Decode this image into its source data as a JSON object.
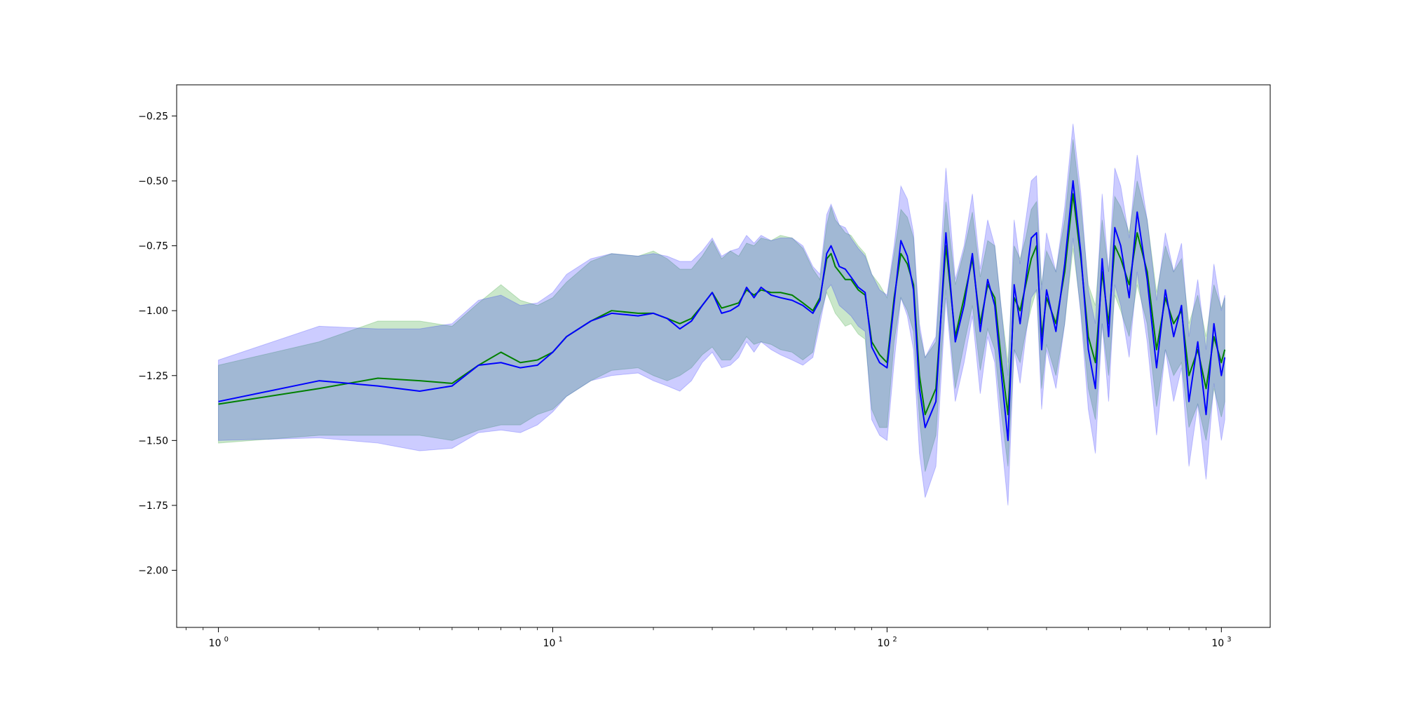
{
  "chart_data": {
    "type": "line",
    "title": "",
    "xlabel": "",
    "ylabel": "",
    "x_scale": "log",
    "xlim": [
      0.75,
      1400
    ],
    "ylim": [
      -2.22,
      -0.13
    ],
    "grid": false,
    "legend": "none",
    "x_ticks": [
      {
        "value": 1,
        "base": "10",
        "exp": "0"
      },
      {
        "value": 10,
        "base": "10",
        "exp": "1"
      },
      {
        "value": 100,
        "base": "10",
        "exp": "2"
      },
      {
        "value": 1000,
        "base": "10",
        "exp": "3"
      }
    ],
    "y_ticks": [
      {
        "value": -0.25,
        "label": "−0.25"
      },
      {
        "value": -0.5,
        "label": "−0.50"
      },
      {
        "value": -0.75,
        "label": "−0.75"
      },
      {
        "value": -1.0,
        "label": "−1.00"
      },
      {
        "value": -1.25,
        "label": "−1.25"
      },
      {
        "value": -1.5,
        "label": "−1.50"
      },
      {
        "value": -1.75,
        "label": "−1.75"
      },
      {
        "value": -2.0,
        "label": "−2.00"
      }
    ],
    "series": [
      {
        "color": "#008000",
        "band_color": "#2ca02c",
        "band_opacity": 0.25,
        "x": [
          1,
          2,
          3,
          4,
          5,
          6,
          7,
          8,
          9,
          10,
          11,
          13,
          15,
          18,
          20,
          22,
          24,
          26,
          28,
          30,
          32,
          34,
          36,
          38,
          40,
          42,
          45,
          48,
          52,
          56,
          60,
          63,
          66,
          68,
          70,
          72,
          75,
          78,
          82,
          86,
          90,
          95,
          100,
          105,
          110,
          115,
          120,
          125,
          130,
          140,
          150,
          160,
          170,
          180,
          190,
          200,
          210,
          220,
          230,
          240,
          250,
          260,
          270,
          280,
          290,
          300,
          320,
          340,
          360,
          380,
          400,
          420,
          440,
          460,
          480,
          500,
          530,
          560,
          600,
          640,
          680,
          720,
          760,
          800,
          850,
          900,
          950,
          1000,
          1024
        ],
        "y": [
          -1.36,
          -1.3,
          -1.26,
          -1.27,
          -1.28,
          -1.21,
          -1.16,
          -1.2,
          -1.19,
          -1.16,
          -1.1,
          -1.04,
          -1.0,
          -1.01,
          -1.01,
          -1.03,
          -1.05,
          -1.03,
          -0.98,
          -0.93,
          -0.99,
          -0.98,
          -0.97,
          -0.92,
          -0.94,
          -0.92,
          -0.93,
          -0.93,
          -0.94,
          -0.97,
          -1.0,
          -0.95,
          -0.8,
          -0.78,
          -0.83,
          -0.85,
          -0.88,
          -0.88,
          -0.92,
          -0.94,
          -1.12,
          -1.17,
          -1.2,
          -0.95,
          -0.78,
          -0.82,
          -0.9,
          -1.25,
          -1.4,
          -1.3,
          -0.75,
          -1.1,
          -0.95,
          -0.8,
          -1.05,
          -0.9,
          -0.95,
          -1.2,
          -1.4,
          -0.95,
          -1.0,
          -0.9,
          -0.8,
          -0.75,
          -1.1,
          -0.95,
          -1.05,
          -0.85,
          -0.55,
          -0.8,
          -1.1,
          -1.2,
          -0.85,
          -1.05,
          -0.75,
          -0.8,
          -0.9,
          -0.7,
          -0.85,
          -1.15,
          -0.95,
          -1.05,
          -1.0,
          -1.25,
          -1.15,
          -1.3,
          -1.1,
          -1.2,
          -1.15
        ],
        "lower": [
          -1.51,
          -1.48,
          -1.48,
          -1.48,
          -1.5,
          -1.46,
          -1.44,
          -1.44,
          -1.4,
          -1.38,
          -1.33,
          -1.27,
          -1.23,
          -1.22,
          -1.25,
          -1.27,
          -1.25,
          -1.22,
          -1.17,
          -1.14,
          -1.19,
          -1.19,
          -1.15,
          -1.1,
          -1.13,
          -1.12,
          -1.13,
          -1.15,
          -1.16,
          -1.19,
          -1.16,
          -1.02,
          -0.93,
          -0.97,
          -1.01,
          -1.03,
          -1.06,
          -1.05,
          -1.09,
          -1.11,
          -1.38,
          -1.45,
          -1.45,
          -1.12,
          -0.95,
          -1.0,
          -1.08,
          -1.42,
          -1.62,
          -1.48,
          -0.92,
          -1.3,
          -1.13,
          -0.98,
          -1.23,
          -1.07,
          -1.15,
          -1.4,
          -1.6,
          -1.15,
          -1.2,
          -1.08,
          -0.99,
          -0.92,
          -1.3,
          -1.13,
          -1.25,
          -1.05,
          -0.76,
          -1.0,
          -1.3,
          -1.42,
          -1.05,
          -1.25,
          -0.94,
          -1.0,
          -1.1,
          -0.9,
          -1.05,
          -1.37,
          -1.15,
          -1.25,
          -1.2,
          -1.45,
          -1.36,
          -1.5,
          -1.3,
          -1.41,
          -1.35
        ],
        "upper": [
          -1.21,
          -1.12,
          -1.04,
          -1.04,
          -1.06,
          -0.97,
          -0.9,
          -0.96,
          -0.98,
          -0.95,
          -0.89,
          -0.81,
          -0.78,
          -0.79,
          -0.77,
          -0.8,
          -0.84,
          -0.84,
          -0.79,
          -0.73,
          -0.8,
          -0.77,
          -0.79,
          -0.74,
          -0.75,
          -0.72,
          -0.73,
          -0.71,
          -0.72,
          -0.76,
          -0.84,
          -0.88,
          -0.67,
          -0.6,
          -0.65,
          -0.67,
          -0.7,
          -0.71,
          -0.75,
          -0.78,
          -0.86,
          -0.9,
          -0.95,
          -0.78,
          -0.61,
          -0.64,
          -0.72,
          -1.08,
          -1.18,
          -1.12,
          -0.58,
          -0.9,
          -0.77,
          -0.62,
          -0.87,
          -0.73,
          -0.75,
          -1.0,
          -1.2,
          -0.75,
          -0.8,
          -0.72,
          -0.61,
          -0.58,
          -0.9,
          -0.77,
          -0.85,
          -0.65,
          -0.34,
          -0.6,
          -0.9,
          -0.98,
          -0.65,
          -0.85,
          -0.56,
          -0.6,
          -0.7,
          -0.5,
          -0.65,
          -0.93,
          -0.75,
          -0.85,
          -0.8,
          -1.05,
          -0.94,
          -1.1,
          -0.9,
          -0.99,
          -0.95
        ]
      },
      {
        "color": "#0000ff",
        "band_color": "#0000ff",
        "band_opacity": 0.2,
        "x": [
          1,
          2,
          3,
          4,
          5,
          6,
          7,
          8,
          9,
          10,
          11,
          13,
          15,
          18,
          20,
          22,
          24,
          26,
          28,
          30,
          32,
          34,
          36,
          38,
          40,
          42,
          45,
          48,
          52,
          56,
          60,
          63,
          66,
          68,
          70,
          72,
          75,
          78,
          82,
          86,
          90,
          95,
          100,
          105,
          110,
          115,
          120,
          125,
          130,
          140,
          150,
          160,
          170,
          180,
          190,
          200,
          210,
          220,
          230,
          240,
          250,
          260,
          270,
          280,
          290,
          300,
          320,
          340,
          360,
          380,
          400,
          420,
          440,
          460,
          480,
          500,
          530,
          560,
          600,
          640,
          680,
          720,
          760,
          800,
          850,
          900,
          950,
          1000,
          1024
        ],
        "y": [
          -1.35,
          -1.27,
          -1.29,
          -1.31,
          -1.29,
          -1.21,
          -1.2,
          -1.22,
          -1.21,
          -1.16,
          -1.1,
          -1.04,
          -1.01,
          -1.02,
          -1.01,
          -1.03,
          -1.07,
          -1.04,
          -0.98,
          -0.93,
          -1.01,
          -1.0,
          -0.98,
          -0.91,
          -0.95,
          -0.91,
          -0.94,
          -0.95,
          -0.96,
          -0.98,
          -1.01,
          -0.96,
          -0.78,
          -0.75,
          -0.79,
          -0.83,
          -0.84,
          -0.87,
          -0.91,
          -0.93,
          -1.14,
          -1.2,
          -1.22,
          -0.97,
          -0.73,
          -0.79,
          -0.92,
          -1.3,
          -1.45,
          -1.35,
          -0.7,
          -1.12,
          -0.98,
          -0.78,
          -1.08,
          -0.88,
          -0.98,
          -1.25,
          -1.5,
          -0.9,
          -1.05,
          -0.88,
          -0.72,
          -0.7,
          -1.15,
          -0.92,
          -1.08,
          -0.82,
          -0.5,
          -0.78,
          -1.15,
          -1.3,
          -0.8,
          -1.1,
          -0.68,
          -0.75,
          -0.95,
          -0.62,
          -0.88,
          -1.22,
          -0.92,
          -1.1,
          -0.98,
          -1.35,
          -1.12,
          -1.4,
          -1.05,
          -1.25,
          -1.18
        ],
        "lower": [
          -1.5,
          -1.49,
          -1.51,
          -1.54,
          -1.53,
          -1.47,
          -1.46,
          -1.47,
          -1.44,
          -1.39,
          -1.33,
          -1.27,
          -1.25,
          -1.24,
          -1.27,
          -1.29,
          -1.31,
          -1.27,
          -1.2,
          -1.16,
          -1.22,
          -1.21,
          -1.18,
          -1.12,
          -1.16,
          -1.12,
          -1.15,
          -1.17,
          -1.19,
          -1.21,
          -1.18,
          -1.05,
          -0.92,
          -0.9,
          -0.94,
          -0.98,
          -1.0,
          -1.02,
          -1.06,
          -1.08,
          -1.42,
          -1.48,
          -1.5,
          -1.2,
          -0.95,
          -1.02,
          -1.15,
          -1.55,
          -1.72,
          -1.6,
          -0.95,
          -1.35,
          -1.2,
          -1.02,
          -1.32,
          -1.1,
          -1.2,
          -1.5,
          -1.75,
          -1.15,
          -1.28,
          -1.1,
          -0.95,
          -0.92,
          -1.38,
          -1.15,
          -1.3,
          -1.05,
          -0.72,
          -1.02,
          -1.38,
          -1.55,
          -1.05,
          -1.35,
          -0.9,
          -0.98,
          -1.18,
          -0.85,
          -1.12,
          -1.48,
          -1.15,
          -1.35,
          -1.22,
          -1.6,
          -1.36,
          -1.65,
          -1.28,
          -1.5,
          -1.42
        ],
        "upper": [
          -1.19,
          -1.06,
          -1.07,
          -1.07,
          -1.05,
          -0.96,
          -0.94,
          -0.98,
          -0.97,
          -0.93,
          -0.86,
          -0.8,
          -0.78,
          -0.79,
          -0.78,
          -0.79,
          -0.81,
          -0.81,
          -0.77,
          -0.72,
          -0.79,
          -0.77,
          -0.76,
          -0.71,
          -0.74,
          -0.71,
          -0.73,
          -0.72,
          -0.72,
          -0.75,
          -0.83,
          -0.86,
          -0.63,
          -0.59,
          -0.63,
          -0.67,
          -0.68,
          -0.72,
          -0.76,
          -0.79,
          -0.86,
          -0.92,
          -0.94,
          -0.75,
          -0.52,
          -0.57,
          -0.7,
          -1.05,
          -1.18,
          -1.1,
          -0.45,
          -0.88,
          -0.75,
          -0.55,
          -0.84,
          -0.65,
          -0.75,
          -1.0,
          -1.25,
          -0.65,
          -0.82,
          -0.65,
          -0.5,
          -0.48,
          -0.92,
          -0.7,
          -0.85,
          -0.6,
          -0.28,
          -0.55,
          -0.92,
          -1.05,
          -0.55,
          -0.85,
          -0.45,
          -0.52,
          -0.72,
          -0.4,
          -0.65,
          -0.96,
          -0.7,
          -0.85,
          -0.74,
          -1.1,
          -0.88,
          -1.15,
          -0.82,
          -1.0,
          -0.94
        ]
      }
    ]
  }
}
